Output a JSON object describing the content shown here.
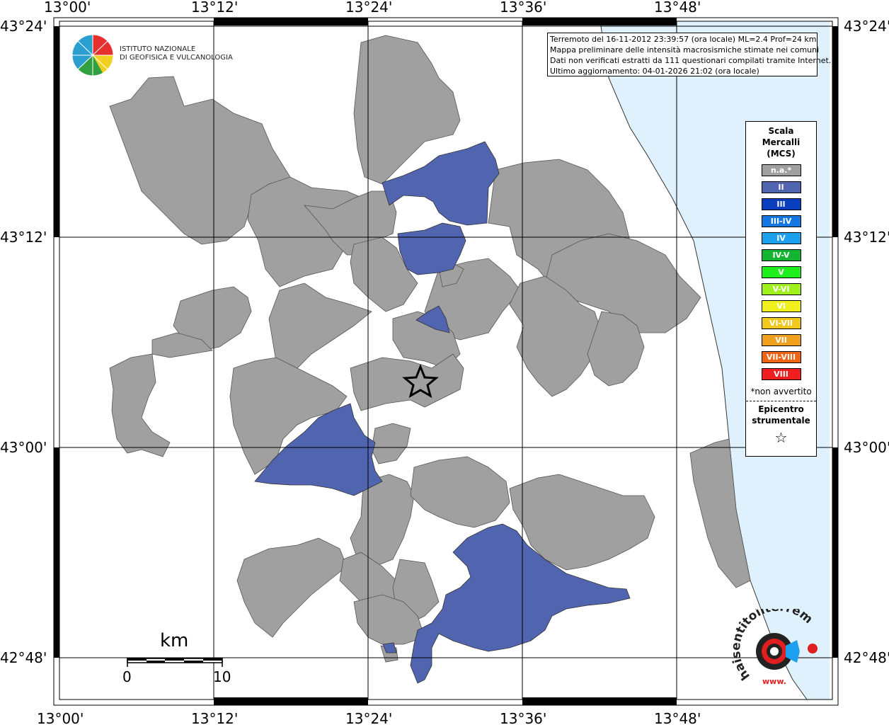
{
  "title_lines": [
    "Terremoto del 16-11-2012 23:39:57 (ora locale) ML=2.4 Prof=24 km",
    "Mappa preliminare delle intensità macrosismiche stimate nei comuni",
    "Dati non verificati estratti da 111 questionari compilati tramite Internet.",
    "Ultimo aggiornamento: 04-01-2026 21:02 (ora locale)"
  ],
  "institute": [
    "ISTITUTO NAZIONALE",
    "DI GEOFISICA E VULCANOLOGIA"
  ],
  "axes": {
    "longitudes": [
      "13°00'",
      "13°12'",
      "13°24'",
      "13°36'",
      "13°48'"
    ],
    "latitudes_left": [
      "43°24'",
      "43°12'",
      "43°00'",
      "42°48'"
    ],
    "latitudes_right": [
      "43°24'",
      "43°12'",
      "43°00'",
      "42°48'"
    ]
  },
  "legend": {
    "title": [
      "Scala",
      "Mercalli",
      "(MCS)"
    ],
    "classes": [
      {
        "label": "n.a.*",
        "color": "#a0a0a0"
      },
      {
        "label": "II",
        "color": "#5064b0"
      },
      {
        "label": "III",
        "color": "#0a3ec0"
      },
      {
        "label": "III-IV",
        "color": "#1478e0"
      },
      {
        "label": "IV",
        "color": "#1ea0f0"
      },
      {
        "label": "IV-V",
        "color": "#14b432"
      },
      {
        "label": "V",
        "color": "#1ef01e"
      },
      {
        "label": "V-VI",
        "color": "#a0f01e"
      },
      {
        "label": "VI",
        "color": "#f0f01e"
      },
      {
        "label": "VI-VII",
        "color": "#f0c81e"
      },
      {
        "label": "VII",
        "color": "#f0a01e"
      },
      {
        "label": "VII-VIII",
        "color": "#f06414"
      },
      {
        "label": "VIII",
        "color": "#f01e1e"
      }
    ],
    "note": "*non avvertito",
    "epicenter_label": [
      "Epicentro",
      "strumentale"
    ],
    "epicenter_symbol": "☆"
  },
  "scale_bar": {
    "unit": "km",
    "min": "0",
    "max": "10"
  },
  "colors": {
    "sea": "#dff1fc",
    "na": "#a0a0a0",
    "ii": "#5064b0"
  },
  "haisentito_text": "haisentitoilterremoto.it",
  "haisentito_sub": "www."
}
